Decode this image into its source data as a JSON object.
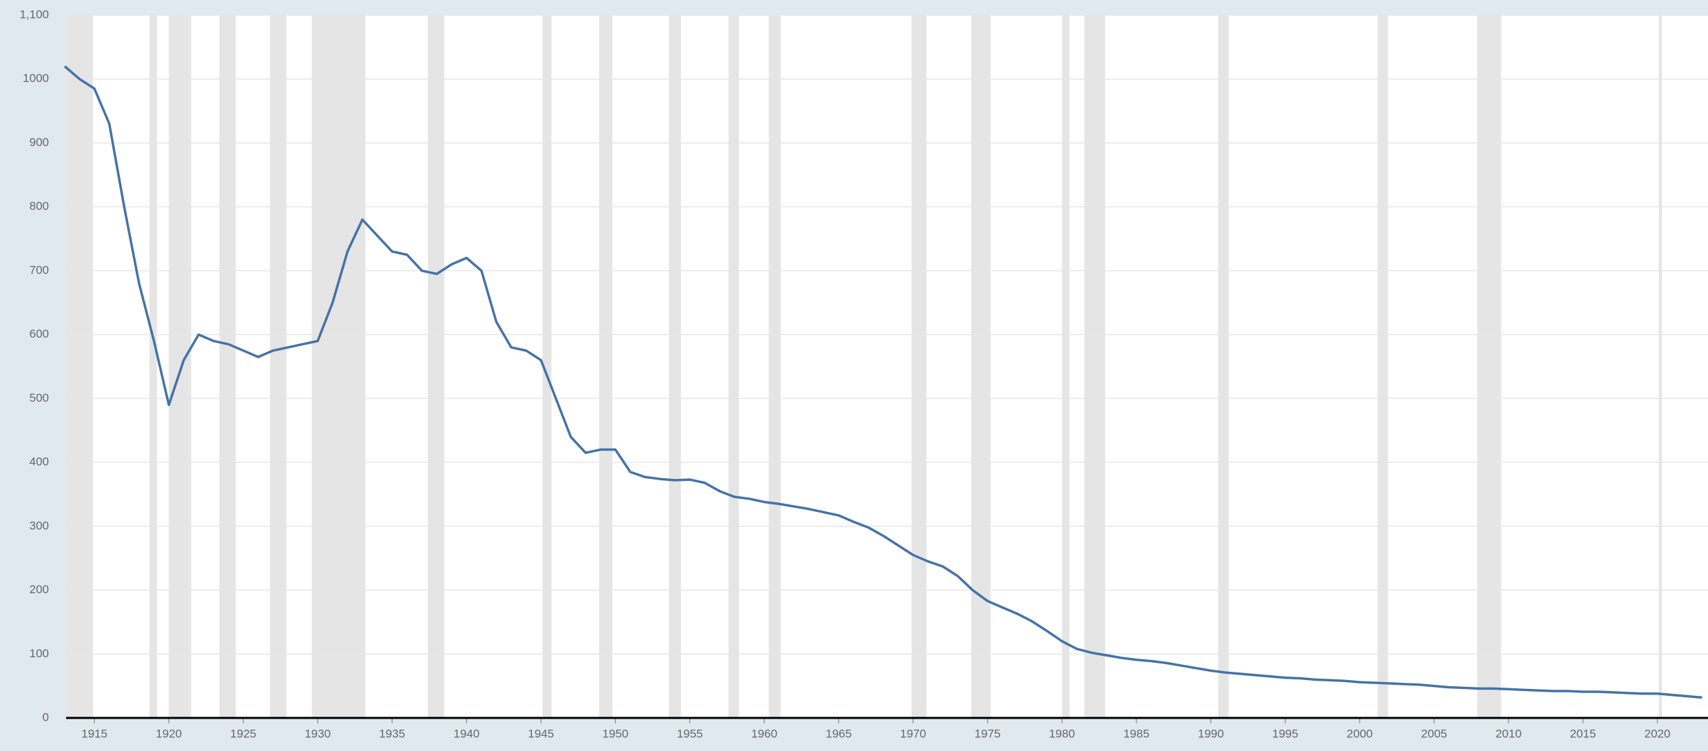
{
  "chart_data": {
    "type": "line",
    "x": [
      1913,
      1914,
      1915,
      1916,
      1917,
      1918,
      1919,
      1920,
      1921,
      1922,
      1923,
      1924,
      1925,
      1926,
      1927,
      1928,
      1929,
      1930,
      1931,
      1932,
      1933,
      1934,
      1935,
      1936,
      1937,
      1938,
      1939,
      1940,
      1941,
      1942,
      1943,
      1944,
      1945,
      1946,
      1947,
      1948,
      1949,
      1950,
      1951,
      1952,
      1953,
      1954,
      1955,
      1956,
      1957,
      1958,
      1959,
      1960,
      1961,
      1962,
      1963,
      1964,
      1965,
      1966,
      1967,
      1968,
      1969,
      1970,
      1971,
      1972,
      1973,
      1974,
      1975,
      1976,
      1977,
      1978,
      1979,
      1980,
      1981,
      1982,
      1983,
      1984,
      1985,
      1986,
      1987,
      1988,
      1989,
      1990,
      1991,
      1992,
      1993,
      1994,
      1995,
      1996,
      1997,
      1998,
      1999,
      2000,
      2001,
      2002,
      2003,
      2004,
      2005,
      2006,
      2007,
      2008,
      2009,
      2010,
      2011,
      2012,
      2013,
      2014,
      2015,
      2016,
      2017,
      2018,
      2019,
      2020,
      2021,
      2022,
      2023
    ],
    "series": [
      {
        "color": "#4572a7",
        "values": [
          1020,
          1000,
          985,
          930,
          800,
          680,
          590,
          490,
          560,
          600,
          590,
          585,
          575,
          565,
          575,
          580,
          585,
          590,
          650,
          730,
          780,
          755,
          730,
          725,
          700,
          695,
          710,
          720,
          700,
          620,
          580,
          575,
          560,
          500,
          440,
          415,
          420,
          420,
          385,
          377,
          374,
          372,
          373,
          368,
          355,
          346,
          343,
          338,
          335,
          331,
          327,
          322,
          317,
          307,
          298,
          285,
          270,
          255,
          245,
          237,
          222,
          200,
          183,
          173,
          163,
          151,
          136,
          120,
          108,
          102,
          98,
          94,
          91,
          89,
          86,
          82,
          78,
          74,
          71,
          69,
          67,
          65,
          63,
          62,
          60,
          59,
          58,
          56,
          55,
          54,
          53,
          52,
          50,
          48,
          47,
          46,
          46,
          45,
          44,
          43,
          42,
          42,
          41,
          41,
          40,
          39,
          38,
          38,
          36,
          34,
          32
        ]
      }
    ],
    "recessions": [
      [
        1913.1,
        1914.9
      ],
      [
        1918.7,
        1919.2
      ],
      [
        1920.0,
        1921.5
      ],
      [
        1923.4,
        1924.5
      ],
      [
        1926.8,
        1927.9
      ],
      [
        1929.6,
        1933.2
      ],
      [
        1937.4,
        1938.5
      ],
      [
        1945.1,
        1945.7
      ],
      [
        1948.9,
        1949.8
      ],
      [
        1953.6,
        1954.4
      ],
      [
        1957.6,
        1958.3
      ],
      [
        1960.3,
        1961.1
      ],
      [
        1969.9,
        1970.9
      ],
      [
        1973.9,
        1975.2
      ],
      [
        1980.0,
        1980.5
      ],
      [
        1981.5,
        1982.9
      ],
      [
        1990.5,
        1991.2
      ],
      [
        2001.2,
        2001.9
      ],
      [
        2007.9,
        2009.5
      ],
      [
        2020.1,
        2020.3
      ]
    ],
    "recession_color": "#e5e5e5",
    "xlim": [
      1913.1,
      2023.4
    ],
    "ylim": [
      0,
      1100
    ],
    "xticks": [
      1915,
      1920,
      1925,
      1930,
      1935,
      1940,
      1945,
      1950,
      1955,
      1960,
      1965,
      1970,
      1975,
      1980,
      1985,
      1990,
      1995,
      2000,
      2005,
      2010,
      2015,
      2020
    ],
    "yticks": [
      0,
      100,
      200,
      300,
      400,
      500,
      600,
      700,
      800,
      900,
      1000,
      {
        "value": 1100,
        "label": "1,100"
      }
    ],
    "grid": true
  }
}
